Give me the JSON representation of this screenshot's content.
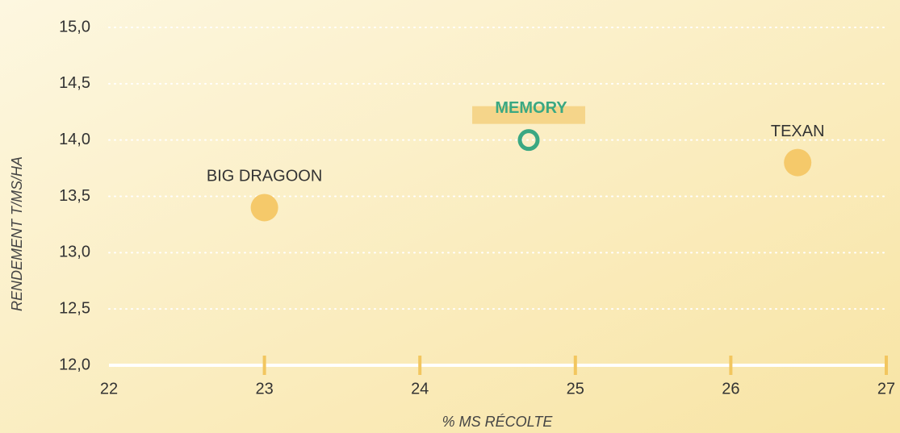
{
  "chart_data": {
    "type": "scatter",
    "x_label": "% MS RÉCOLTE",
    "y_label": "RENDEMENT T/MS/HA",
    "xlim": [
      22,
      27
    ],
    "xticks": [
      22,
      23,
      24,
      25,
      26,
      27
    ],
    "ylim": [
      12,
      15
    ],
    "yticks": [
      {
        "value": 12,
        "label": "12,0"
      },
      {
        "value": 12.5,
        "label": "12,5"
      },
      {
        "value": 13,
        "label": "13,0"
      },
      {
        "value": 13.5,
        "label": "13,5"
      },
      {
        "value": 14,
        "label": "14,0"
      },
      {
        "value": 14.5,
        "label": "14,5"
      },
      {
        "value": 15,
        "label": "15,0"
      }
    ],
    "grid": true,
    "series": [
      {
        "name": "BIG DRAGOON",
        "color": "#f5c96a",
        "x": [
          23
        ],
        "values": [
          13.4
        ]
      },
      {
        "name": "MEMORY",
        "color": "#3aa882",
        "x": [
          24.7
        ],
        "values": [
          14.0
        ],
        "highlight": true
      },
      {
        "name": "TEXAN",
        "color": "#f5c96a",
        "x": [
          26.43
        ],
        "values": [
          13.8
        ]
      }
    ]
  }
}
